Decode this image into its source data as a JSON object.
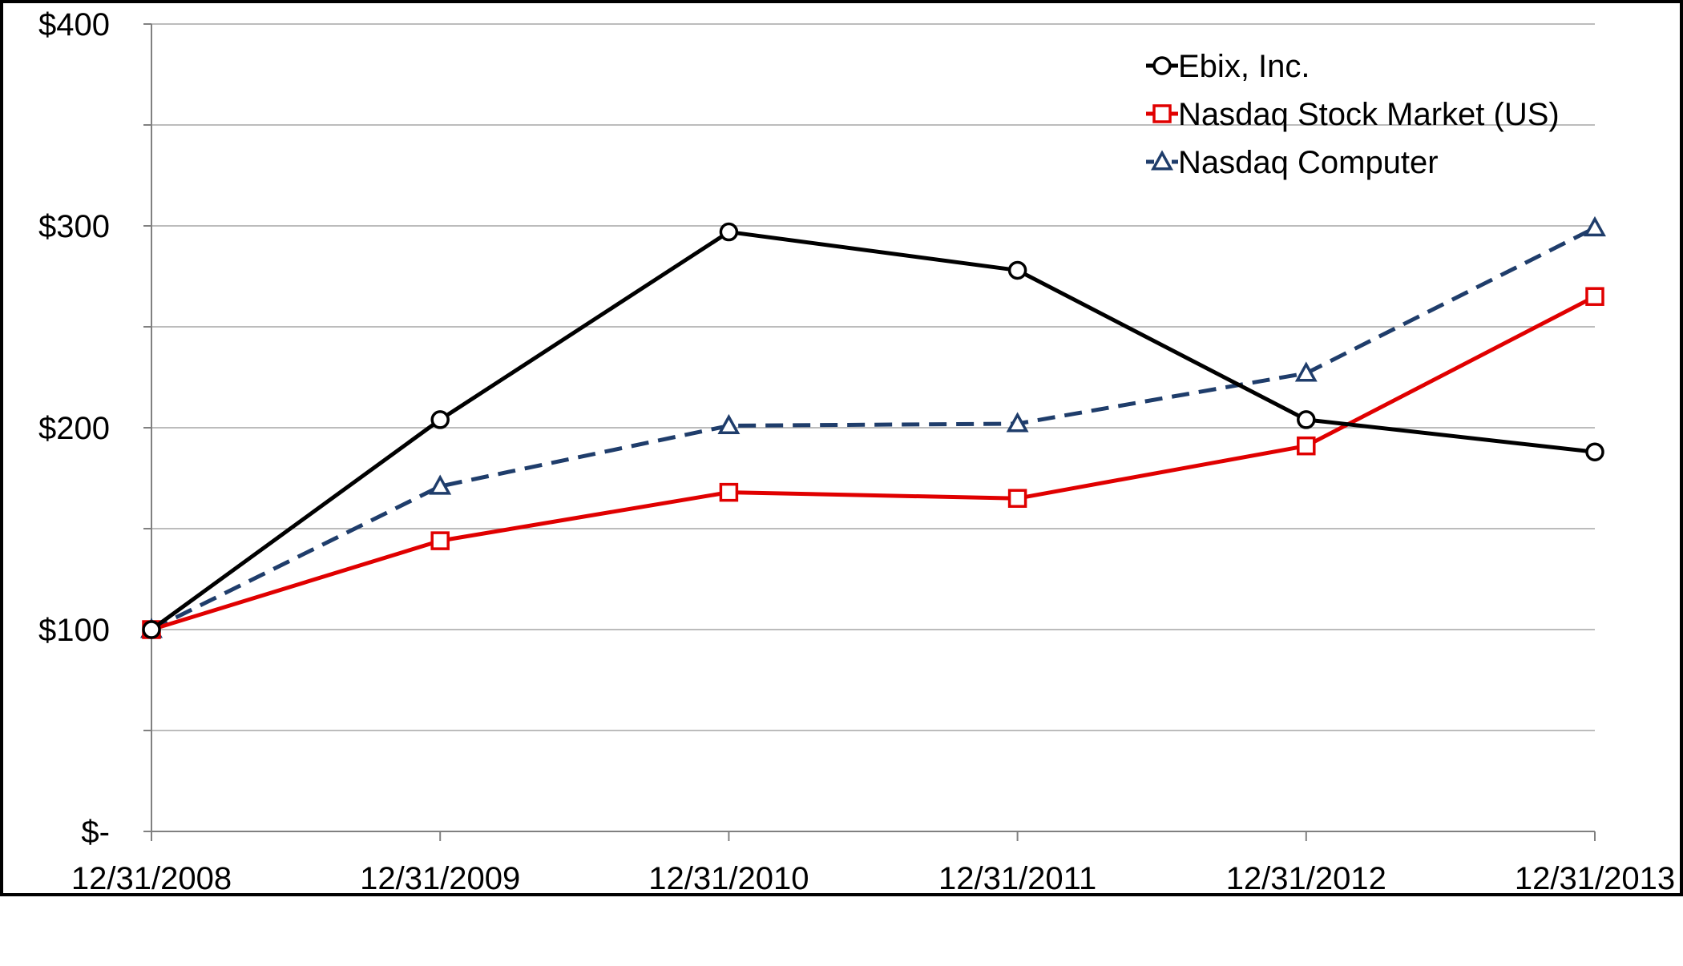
{
  "chart_data": {
    "type": "line",
    "title": "",
    "xlabel": "",
    "ylabel": "",
    "categories": [
      "12/31/2008",
      "12/31/2009",
      "12/31/2010",
      "12/31/2011",
      "12/31/2012",
      "12/31/2013"
    ],
    "y_ticks": [
      {
        "value": 0,
        "label": "$-"
      },
      {
        "value": 100,
        "label": "$100"
      },
      {
        "value": 200,
        "label": "$200"
      },
      {
        "value": 300,
        "label": "$300"
      },
      {
        "value": 400,
        "label": "$400"
      }
    ],
    "ylim": [
      0,
      400
    ],
    "grid": true,
    "legend_position": "top-right",
    "series": [
      {
        "name": "Ebix, Inc.",
        "values": [
          100,
          204,
          297,
          278,
          204,
          188
        ],
        "color": "#000000",
        "marker": "circle",
        "dash": "solid"
      },
      {
        "name": "Nasdaq Stock Market (US)",
        "values": [
          100,
          144,
          168,
          165,
          191,
          265
        ],
        "color": "#e00000",
        "marker": "square",
        "dash": "solid"
      },
      {
        "name": "Nasdaq Computer",
        "values": [
          100,
          171,
          201,
          202,
          227,
          299
        ],
        "color": "#1f3d6b",
        "marker": "triangle",
        "dash": "dashed"
      }
    ]
  }
}
